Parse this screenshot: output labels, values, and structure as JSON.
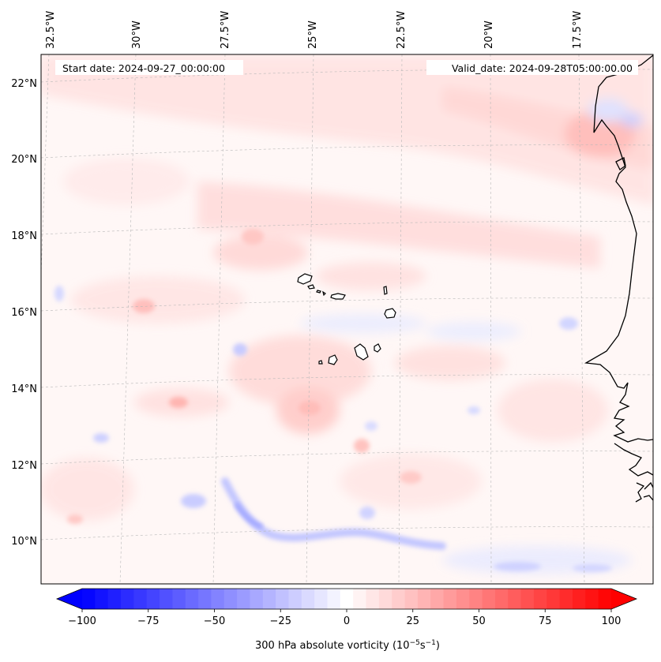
{
  "map": {
    "header": {
      "start_date": "Start date: 2024-09-27_00:00:00",
      "valid_date": "Valid_date: 2024-09-28T05:00:00.00"
    },
    "lon_labels": [
      "32.5°W",
      "30°W",
      "27.5°W",
      "25°W",
      "22.5°W",
      "20°W",
      "17.5°W"
    ],
    "lat_labels": [
      "22°N",
      "20°N",
      "18°N",
      "16°N",
      "14°N",
      "12°N",
      "10°N"
    ],
    "gridlines": true,
    "projection": "conic",
    "field": "300 hPa absolute vorticity",
    "colormap": "bwr"
  },
  "colorbar": {
    "label": "300 hPa absolute vorticity (10",
    "label_exp1": "−5",
    "label_mid": "s",
    "label_exp2": "−1",
    "label_end": ")",
    "ticks": [
      "−100",
      "−75",
      "−50",
      "−25",
      "0",
      "25",
      "50",
      "75",
      "100"
    ],
    "tick_values": [
      -100,
      -75,
      -50,
      -25,
      0,
      25,
      50,
      75,
      100
    ],
    "min": -100,
    "max": 100,
    "extend": "both",
    "colors": {
      "negative": "#0000ff",
      "zero": "#ffffff",
      "positive": "#ff0000"
    }
  }
}
